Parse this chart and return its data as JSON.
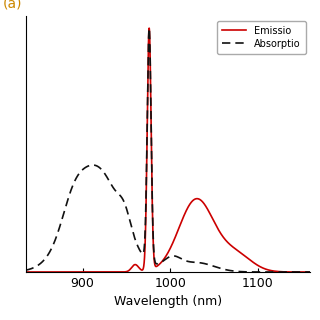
{
  "title": "",
  "panel_label": "(a)",
  "xlabel": "Wavelength (nm)",
  "ylabel": "",
  "xlim": [
    835,
    1160
  ],
  "ylim": [
    0,
    1.05
  ],
  "xticks": [
    900,
    1000,
    1100
  ],
  "xtick_labels": [
    "900",
    "1000",
    "1100"
  ],
  "emission_color": "#cc0000",
  "absorption_color": "#111111",
  "emission_label": "Emissio",
  "absorption_label": "Absorptio",
  "legend_loc": "upper right",
  "background_color": "#ffffff",
  "figsize": [
    3.2,
    3.2
  ],
  "dpi": 100,
  "panel_label_color": "#cc8800"
}
